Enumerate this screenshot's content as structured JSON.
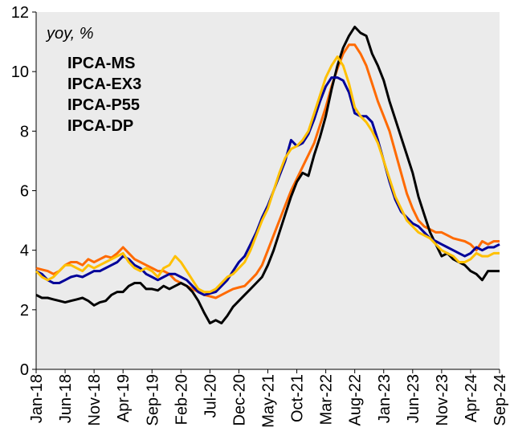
{
  "chart_data": {
    "type": "line",
    "annotation": "yoy, %",
    "categories": [
      "Jan-18",
      null,
      null,
      null,
      null,
      "Jun-18",
      null,
      null,
      null,
      null,
      "Nov-18",
      null,
      null,
      null,
      null,
      "Apr-19",
      null,
      null,
      null,
      null,
      "Sep-19",
      null,
      null,
      null,
      null,
      "Feb-20",
      null,
      null,
      null,
      null,
      "Jul-20",
      null,
      null,
      null,
      null,
      "Dec-20",
      null,
      null,
      null,
      null,
      "May-21",
      null,
      null,
      null,
      null,
      "Oct-21",
      null,
      null,
      null,
      null,
      "Mar-22",
      null,
      null,
      null,
      null,
      "Aug-22",
      null,
      null,
      null,
      null,
      "Jan-23",
      null,
      null,
      null,
      null,
      "Jun-23",
      null,
      null,
      null,
      null,
      "Nov-23",
      null,
      null,
      null,
      null,
      "Apr-24",
      null,
      null,
      null,
      null,
      "Sep-24"
    ],
    "series": [
      {
        "name": "IPCA-MS",
        "color": "#ff6a00",
        "values": [
          3.4,
          3.35,
          3.3,
          3.2,
          3.3,
          3.5,
          3.6,
          3.6,
          3.5,
          3.7,
          3.6,
          3.7,
          3.8,
          3.75,
          3.9,
          4.1,
          3.9,
          3.7,
          3.6,
          3.5,
          3.4,
          3.3,
          3.3,
          3.2,
          3.0,
          2.9,
          2.8,
          2.7,
          2.6,
          2.5,
          2.45,
          2.4,
          2.5,
          2.6,
          2.7,
          2.75,
          2.8,
          3.0,
          3.2,
          3.5,
          4.0,
          4.5,
          5.0,
          5.5,
          6.0,
          6.4,
          6.8,
          7.2,
          7.6,
          8.2,
          8.8,
          9.5,
          10.1,
          10.6,
          10.9,
          10.9,
          10.6,
          10.2,
          9.6,
          9.0,
          8.5,
          8.0,
          7.3,
          6.6,
          5.9,
          5.4,
          5.0,
          4.8,
          4.7,
          4.6,
          4.6,
          4.5,
          4.4,
          4.35,
          4.3,
          4.2,
          4.0,
          4.3,
          4.2,
          4.3,
          4.3
        ]
      },
      {
        "name": "IPCA-EX3",
        "color": "#000000",
        "values": [
          2.5,
          2.4,
          2.4,
          2.35,
          2.3,
          2.25,
          2.3,
          2.35,
          2.4,
          2.3,
          2.15,
          2.25,
          2.3,
          2.5,
          2.6,
          2.6,
          2.8,
          2.9,
          2.9,
          2.7,
          2.7,
          2.65,
          2.8,
          2.7,
          2.8,
          2.9,
          2.8,
          2.6,
          2.3,
          1.9,
          1.55,
          1.65,
          1.55,
          1.8,
          2.1,
          2.3,
          2.5,
          2.7,
          2.9,
          3.1,
          3.5,
          4.0,
          4.6,
          5.2,
          5.8,
          6.3,
          6.6,
          6.5,
          7.2,
          7.8,
          8.5,
          9.4,
          10.2,
          10.8,
          11.2,
          11.5,
          11.3,
          11.2,
          10.6,
          10.2,
          9.7,
          9.0,
          8.4,
          7.8,
          7.2,
          6.6,
          5.8,
          5.2,
          4.6,
          4.2,
          3.8,
          3.9,
          3.7,
          3.6,
          3.5,
          3.3,
          3.2,
          3.0,
          3.3,
          3.3,
          3.3
        ]
      },
      {
        "name": "IPCA-P55",
        "color": "#000099",
        "values": [
          3.3,
          3.2,
          3.0,
          2.9,
          2.9,
          3.0,
          3.1,
          3.15,
          3.1,
          3.2,
          3.3,
          3.3,
          3.4,
          3.5,
          3.6,
          3.8,
          3.7,
          3.5,
          3.4,
          3.2,
          3.1,
          3.0,
          3.1,
          3.2,
          3.2,
          3.1,
          3.0,
          2.8,
          2.6,
          2.5,
          2.55,
          2.6,
          2.8,
          3.0,
          3.3,
          3.6,
          3.8,
          4.2,
          4.6,
          5.1,
          5.5,
          6.0,
          6.5,
          7.0,
          7.7,
          7.5,
          7.6,
          7.9,
          8.4,
          9.0,
          9.5,
          9.8,
          9.8,
          9.7,
          9.3,
          8.6,
          8.5,
          8.5,
          8.3,
          7.7,
          7.0,
          6.3,
          5.7,
          5.3,
          5.1,
          4.9,
          4.8,
          4.6,
          4.4,
          4.3,
          4.2,
          4.1,
          4.0,
          3.9,
          3.8,
          3.9,
          4.1,
          4.0,
          4.1,
          4.1,
          4.2
        ]
      },
      {
        "name": "IPCA-DP",
        "color": "#ffc000",
        "values": [
          3.3,
          3.1,
          3.0,
          3.1,
          3.3,
          3.5,
          3.5,
          3.4,
          3.3,
          3.5,
          3.4,
          3.5,
          3.6,
          3.7,
          3.8,
          3.9,
          3.6,
          3.4,
          3.3,
          3.4,
          3.3,
          3.1,
          3.4,
          3.5,
          3.8,
          3.6,
          3.3,
          3.0,
          2.7,
          2.6,
          2.6,
          2.7,
          2.9,
          3.1,
          3.2,
          3.4,
          3.6,
          4.0,
          4.5,
          5.0,
          5.4,
          6.0,
          6.6,
          7.1,
          7.4,
          7.5,
          7.7,
          8.0,
          8.6,
          9.2,
          9.8,
          10.2,
          10.5,
          10.2,
          9.6,
          8.8,
          8.5,
          8.3,
          8.0,
          7.6,
          7.0,
          6.4,
          5.8,
          5.4,
          5.0,
          4.8,
          4.6,
          4.5,
          4.4,
          4.2,
          4.0,
          3.9,
          3.8,
          3.6,
          3.6,
          3.7,
          3.9,
          3.8,
          3.8,
          3.9,
          3.9
        ]
      }
    ],
    "ylim": [
      0,
      12
    ],
    "yticks": [
      0,
      2,
      4,
      6,
      8,
      10,
      12
    ]
  }
}
